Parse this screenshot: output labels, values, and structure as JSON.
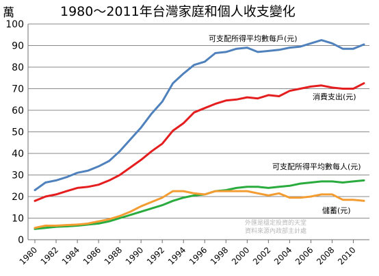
{
  "chart_data": {
    "type": "line",
    "title": "1980～2011年台灣家庭和個人收支變化",
    "unit_label": "萬",
    "grid": true,
    "ylim": [
      0,
      100
    ],
    "yticks": [
      0,
      10,
      20,
      30,
      40,
      50,
      60,
      70,
      80,
      90,
      100
    ],
    "x": [
      1980,
      1981,
      1982,
      1983,
      1984,
      1985,
      1986,
      1987,
      1988,
      1989,
      1990,
      1991,
      1992,
      1993,
      1994,
      1995,
      1996,
      1997,
      1998,
      1999,
      2000,
      2001,
      2002,
      2003,
      2004,
      2005,
      2006,
      2007,
      2008,
      2009,
      2010,
      2011
    ],
    "xticks": [
      "1980",
      "1982",
      "1984",
      "1986",
      "1988",
      "1990",
      "1992",
      "1994",
      "1996",
      "1998",
      "2000",
      "2002",
      "2004",
      "2006",
      "2008",
      "2010"
    ],
    "series": [
      {
        "name": "可支配所得平均數每戶(元)",
        "color": "#4f81bd",
        "values": [
          23,
          26.5,
          27.5,
          29,
          31,
          32,
          34,
          36.5,
          41,
          46.5,
          52,
          58.5,
          64,
          72.5,
          77,
          81,
          82.5,
          86.5,
          87,
          88.5,
          89,
          87,
          87.5,
          88,
          89,
          89.5,
          91,
          92.5,
          91,
          88.5,
          88.5,
          90.5
        ]
      },
      {
        "name": "消費支出(元)",
        "color": "#e41e1e",
        "values": [
          18,
          20,
          21,
          22.5,
          24,
          24.5,
          25.5,
          27.5,
          30,
          33.5,
          37,
          41,
          44.5,
          50.5,
          54,
          59,
          61,
          63,
          64.5,
          65,
          66,
          65.5,
          67,
          66.5,
          69,
          70,
          71,
          71.5,
          70.5,
          70,
          70,
          72.5
        ]
      },
      {
        "name": "可支配所得平均數每人(元)",
        "color": "#2aab3e",
        "values": [
          5,
          5.5,
          6,
          6.2,
          6.5,
          7,
          7.5,
          8.5,
          10,
          11.5,
          13,
          14.5,
          16,
          18,
          19.5,
          20.5,
          21,
          22.5,
          23,
          24,
          24.5,
          24.5,
          24,
          24.5,
          25,
          26,
          26.5,
          27,
          27,
          26.5,
          27,
          27.5
        ]
      },
      {
        "name": "儲蓄(元)",
        "color": "#f39c32",
        "values": [
          5.5,
          6.5,
          6.5,
          6.8,
          7,
          7.5,
          8.5,
          9.5,
          11,
          13,
          15.5,
          17.5,
          19.5,
          22.5,
          22.5,
          21.5,
          21,
          22.5,
          22.5,
          22.5,
          22.5,
          21.5,
          20.5,
          21.5,
          19.5,
          19.5,
          20,
          21,
          21,
          18.5,
          18.5,
          18
        ]
      }
    ],
    "annotation": [
      "外匯是穩定投資的天堂",
      "資料來源內政部主計處"
    ]
  }
}
